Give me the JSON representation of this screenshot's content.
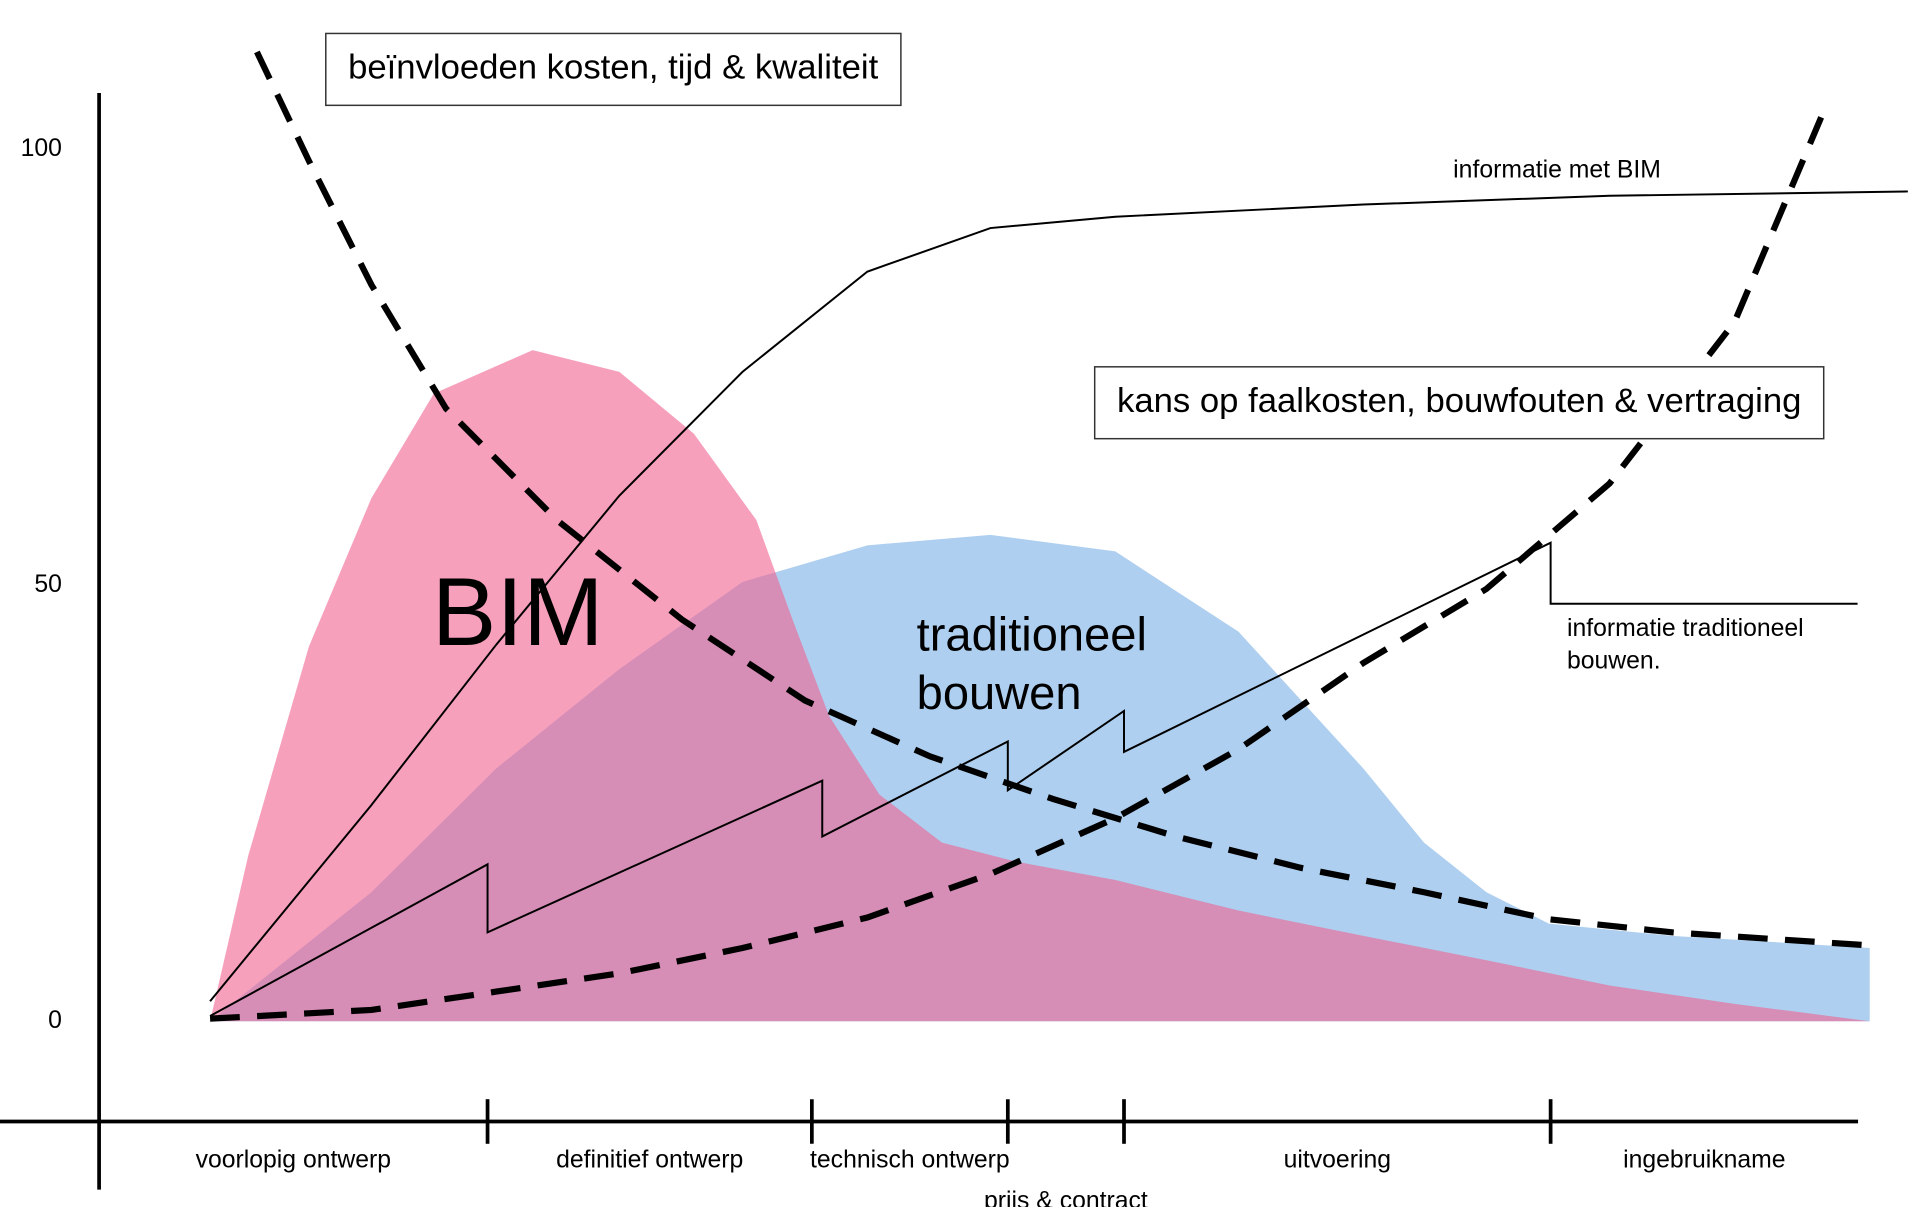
{
  "chart_data": {
    "type": "line",
    "xlim": [
      0,
      105
    ],
    "ylim": [
      -11.5,
      106.5
    ],
    "yticks": [
      0,
      50,
      100
    ],
    "xticks": [
      22.4,
      41.1,
      52.4,
      59.1,
      83.7
    ],
    "phases": [
      "voorlopig ontwerp",
      "definitief ontwerp",
      "technisch ontwerp",
      "prijs & contract",
      "uitvoering",
      "ingebruikname"
    ],
    "grid": false,
    "series": [
      {
        "label": [
          "traditioneel",
          "bouwen"
        ],
        "style": "area",
        "color": "#aecfef",
        "x": [
          6.4,
          15.7,
          22.9,
          30,
          37.1,
          44.3,
          51.4,
          58.6,
          65.7,
          72.9,
          76.4,
          80,
          83.6,
          90.7,
          102.1
        ],
        "values": [
          0,
          14.8,
          29,
          40.4,
          50.4,
          54.6,
          55.8,
          53.9,
          44.7,
          29,
          20.5,
          14.8,
          11.2,
          9.8,
          8.4
        ]
      },
      {
        "label": [
          "BIM"
        ],
        "style": "area",
        "color": "#f0618f",
        "x": [
          6.4,
          8.6,
          12.1,
          15.7,
          19.3,
          25,
          30,
          34.3,
          37.9,
          40,
          42.1,
          45,
          48.6,
          52.9,
          58.6,
          65.7,
          72.9,
          80,
          87.1,
          94.3,
          102.1
        ],
        "values": [
          0,
          19,
          43,
          60,
          72,
          77,
          74.5,
          67.4,
          57.5,
          46,
          35,
          26,
          20.5,
          18.3,
          16.2,
          12.7,
          9.8,
          7,
          4.1,
          2,
          0
        ]
      },
      {
        "label": [
          "informatie met BIM"
        ],
        "style": "line",
        "color": "#000000",
        "x": [
          6.4,
          15.7,
          22.9,
          30,
          37.1,
          44.3,
          51.4,
          58.6,
          72.9,
          87.1,
          104.3
        ],
        "values": [
          2.3,
          24.8,
          43.2,
          60.3,
          74.5,
          86,
          91,
          92.3,
          93.7,
          94.7,
          95.2
        ]
      },
      {
        "label": [
          "informatie traditioneel",
          "bouwen."
        ],
        "style": "line",
        "color": "#000000",
        "x": [
          6.4,
          22.4,
          22.4,
          41.7,
          41.7,
          52.4,
          52.4,
          59.1,
          59.1,
          83.7,
          83.7,
          101.4
        ],
        "values": [
          0.6,
          18,
          10.2,
          27.6,
          21.2,
          32.1,
          26.5,
          35.6,
          30.9,
          54.9,
          47.9,
          47.9
        ]
      },
      {
        "label": [
          "beïnvloeden kosten, tijd & kwaliteit"
        ],
        "style": "dashed",
        "color": "#000000",
        "x": [
          9.1,
          12.1,
          15.7,
          20,
          26.4,
          33.6,
          40.7,
          47.9,
          55,
          62.1,
          69.3,
          76.4,
          83.6,
          90.7,
          102.1
        ],
        "values": [
          111.2,
          98.7,
          84.5,
          70.3,
          57.5,
          46.1,
          36.8,
          30.4,
          25.5,
          21.2,
          17.6,
          14.8,
          11.7,
          10.2,
          8.7
        ]
      },
      {
        "label": [
          "kans op faalkosten, bouwfouten & vertraging"
        ],
        "style": "dashed",
        "color": "#000000",
        "x": [
          6.4,
          15.7,
          22.9,
          30,
          37.1,
          44.3,
          51.4,
          58.6,
          65.7,
          72.9,
          80,
          87.1,
          94.3,
          99.3
        ],
        "values": [
          0.3,
          1.3,
          3.4,
          5.5,
          8.4,
          11.9,
          16.9,
          23.3,
          31.2,
          41.1,
          49.6,
          61.7,
          80.2,
          103.7
        ]
      }
    ]
  }
}
